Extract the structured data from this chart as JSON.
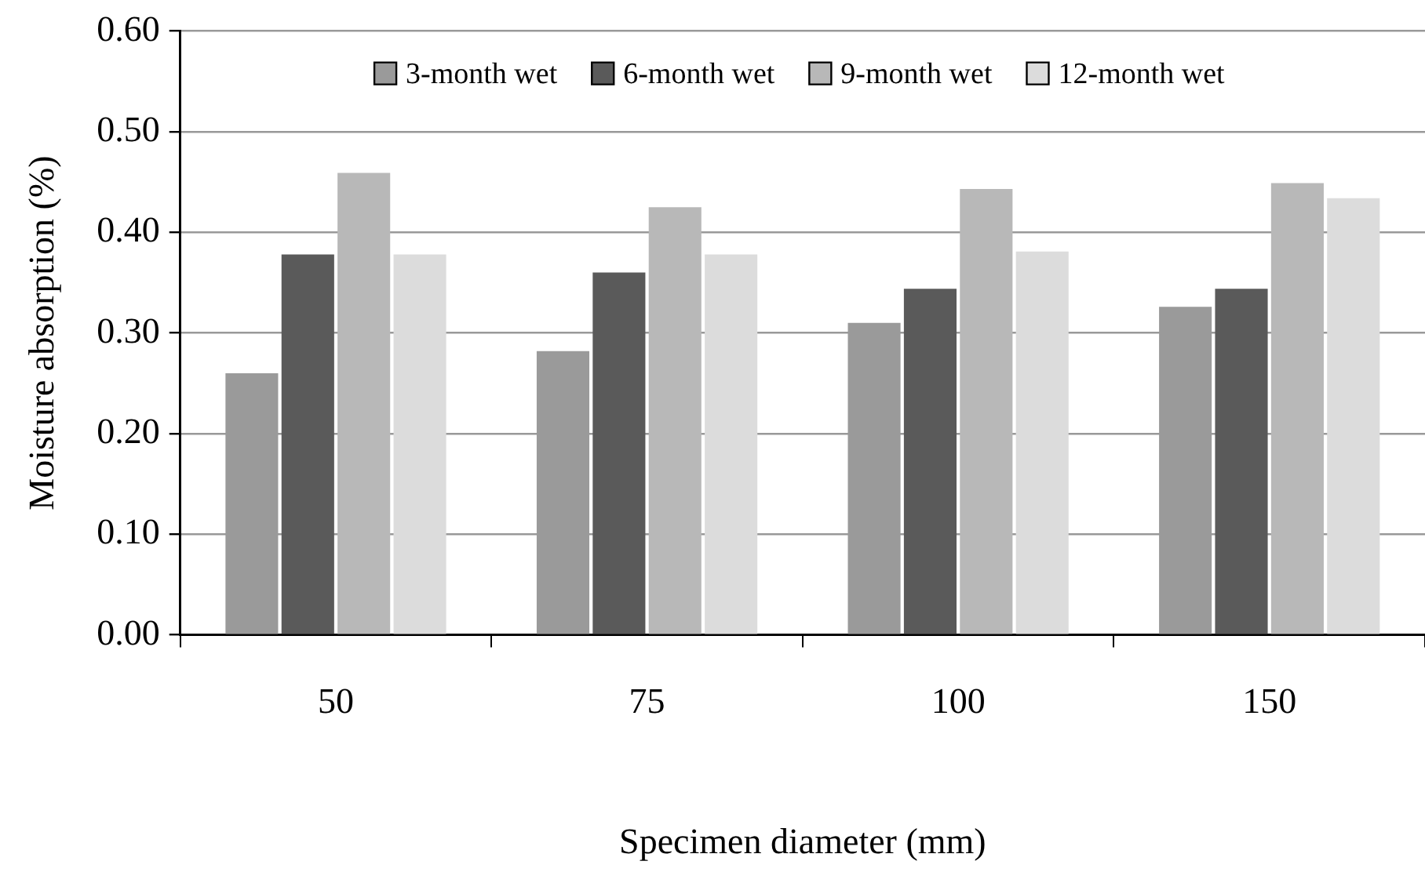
{
  "chart_data": {
    "type": "bar",
    "xlabel": "Specimen diameter (mm)",
    "ylabel": "Moisture absorption (%)",
    "categories": [
      "50",
      "75",
      "100",
      "150"
    ],
    "series": [
      {
        "name": "3-month wet",
        "color": "#9a9a9a",
        "values": [
          0.26,
          0.282,
          0.31,
          0.326
        ]
      },
      {
        "name": "6-month wet",
        "color": "#5a5a5a",
        "values": [
          0.378,
          0.36,
          0.344,
          0.344
        ]
      },
      {
        "name": "9-month wet",
        "color": "#b8b8b8",
        "values": [
          0.459,
          0.425,
          0.443,
          0.449
        ]
      },
      {
        "name": "12-month wet",
        "color": "#dcdcdc",
        "values": [
          0.378,
          0.378,
          0.381,
          0.434
        ]
      }
    ],
    "ylim": [
      0,
      0.6
    ],
    "yticks": [
      {
        "value": 0,
        "label": "0.00"
      },
      {
        "value": 0.1,
        "label": "0.10"
      },
      {
        "value": 0.2,
        "label": "0.20"
      },
      {
        "value": 0.3,
        "label": "0.30"
      },
      {
        "value": 0.4,
        "label": "0.40"
      },
      {
        "value": 0.5,
        "label": "0.50"
      },
      {
        "value": 0.6,
        "label": "0.60"
      }
    ],
    "grid": "y",
    "legend": "top"
  }
}
